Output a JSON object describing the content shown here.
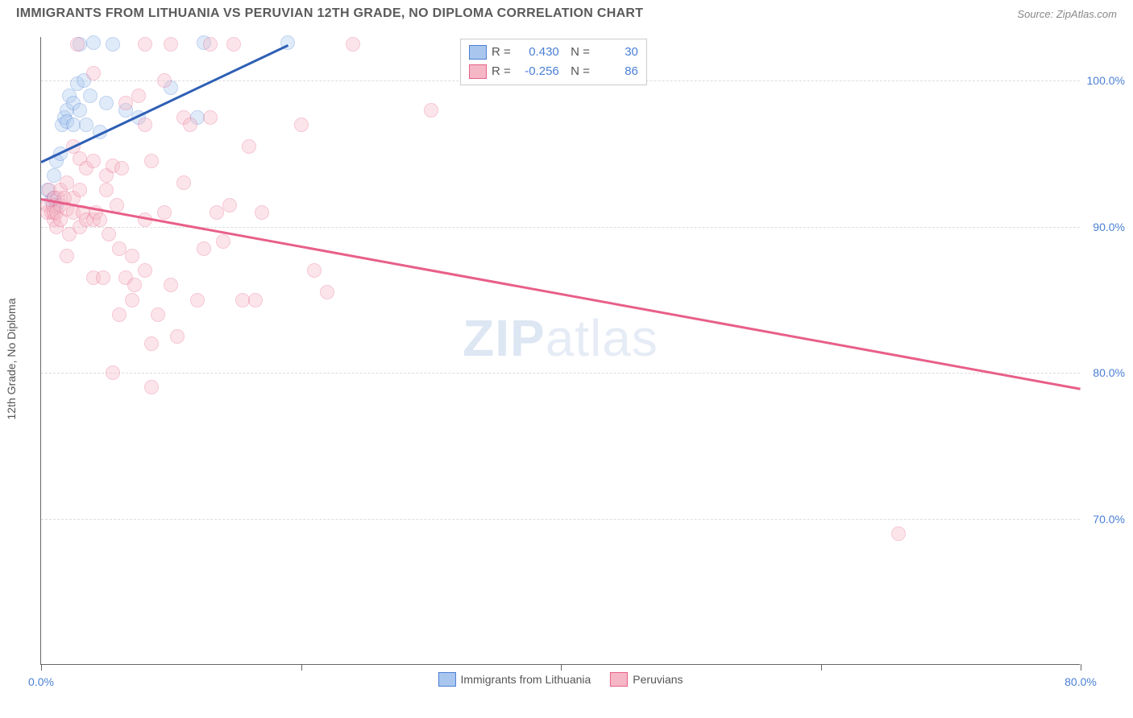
{
  "header": {
    "title": "IMMIGRANTS FROM LITHUANIA VS PERUVIAN 12TH GRADE, NO DIPLOMA CORRELATION CHART",
    "source_label": "Source:",
    "source_name": "ZipAtlas.com"
  },
  "chart": {
    "ylabel": "12th Grade, No Diploma",
    "xlim": [
      0,
      80
    ],
    "ylim": [
      60,
      103
    ],
    "yticks": [
      70,
      80,
      90,
      100
    ],
    "ytick_labels": [
      "70.0%",
      "80.0%",
      "90.0%",
      "100.0%"
    ],
    "xticks": [
      0,
      20,
      40,
      60,
      80
    ],
    "xtick_labels": [
      "0.0%",
      "",
      "",
      "",
      "80.0%"
    ],
    "background_color": "#ffffff",
    "grid_color": "#dddddd",
    "axis_color": "#666666",
    "tick_label_color": "#4a7fd4",
    "marker_radius": 9,
    "marker_opacity": 0.35,
    "watermark": {
      "text_bold": "ZIP",
      "text_light": "atlas",
      "color": "#e2e9f4"
    },
    "series": [
      {
        "name": "Immigrants from Lithuania",
        "color_fill": "#a9c7ee",
        "color_stroke": "#4a7fd4",
        "trend_color": "#2e5fb5",
        "R": "0.430",
        "N": "30",
        "trend": {
          "x1": 0,
          "y1": 94.5,
          "x2": 19,
          "y2": 102.5
        },
        "points": [
          [
            0.5,
            92.5
          ],
          [
            0.8,
            91.8
          ],
          [
            1,
            92
          ],
          [
            1,
            93.5
          ],
          [
            1.2,
            94.5
          ],
          [
            1.2,
            91.5
          ],
          [
            1.5,
            95
          ],
          [
            1.6,
            97
          ],
          [
            1.8,
            97.5
          ],
          [
            2,
            98
          ],
          [
            2,
            97.2
          ],
          [
            2.2,
            99
          ],
          [
            2.5,
            97
          ],
          [
            2.5,
            98.5
          ],
          [
            2.8,
            99.8
          ],
          [
            3,
            98
          ],
          [
            3,
            102.5
          ],
          [
            3.3,
            100
          ],
          [
            3.5,
            97
          ],
          [
            3.8,
            99
          ],
          [
            4,
            102.6
          ],
          [
            4.5,
            96.5
          ],
          [
            5,
            98.5
          ],
          [
            5.5,
            102.5
          ],
          [
            6.5,
            98
          ],
          [
            7.5,
            97.5
          ],
          [
            10,
            99.5
          ],
          [
            12,
            97.5
          ],
          [
            12.5,
            102.6
          ],
          [
            19,
            102.6
          ]
        ]
      },
      {
        "name": "Peruvians",
        "color_fill": "#f5b7c5",
        "color_stroke": "#e85f89",
        "trend_color": "#e85f89",
        "R": "-0.256",
        "N": "86",
        "trend": {
          "x1": 0,
          "y1": 92,
          "x2": 80,
          "y2": 79
        },
        "points": [
          [
            0.5,
            91.5
          ],
          [
            0.5,
            91
          ],
          [
            0.6,
            92.5
          ],
          [
            0.8,
            91
          ],
          [
            0.9,
            91.5
          ],
          [
            1,
            92
          ],
          [
            1,
            90.5
          ],
          [
            1,
            91
          ],
          [
            1.2,
            91
          ],
          [
            1.2,
            90
          ],
          [
            1.3,
            92
          ],
          [
            1.5,
            92.5
          ],
          [
            1.5,
            91.5
          ],
          [
            1.5,
            90.5
          ],
          [
            1.8,
            92
          ],
          [
            2,
            91.2
          ],
          [
            2,
            93
          ],
          [
            2,
            88
          ],
          [
            2.2,
            89.5
          ],
          [
            2.5,
            92
          ],
          [
            2.5,
            91
          ],
          [
            2.5,
            95.5
          ],
          [
            2.8,
            102.5
          ],
          [
            3,
            90
          ],
          [
            3,
            92.5
          ],
          [
            3,
            94.7
          ],
          [
            3.2,
            91
          ],
          [
            3.5,
            90.5
          ],
          [
            3.5,
            94
          ],
          [
            4,
            86.5
          ],
          [
            4,
            90.5
          ],
          [
            4,
            94.5
          ],
          [
            4,
            100.5
          ],
          [
            4.2,
            91
          ],
          [
            4.5,
            90.5
          ],
          [
            4.8,
            86.5
          ],
          [
            5,
            92.5
          ],
          [
            5,
            93.5
          ],
          [
            5.2,
            89.5
          ],
          [
            5.5,
            80
          ],
          [
            5.5,
            94.2
          ],
          [
            5.8,
            91.5
          ],
          [
            6,
            84
          ],
          [
            6,
            88.5
          ],
          [
            6.2,
            94
          ],
          [
            6.5,
            86.5
          ],
          [
            6.5,
            98.5
          ],
          [
            7,
            85
          ],
          [
            7,
            88
          ],
          [
            7.2,
            86
          ],
          [
            7.5,
            99
          ],
          [
            8,
            87
          ],
          [
            8,
            90.5
          ],
          [
            8,
            97
          ],
          [
            8,
            102.5
          ],
          [
            8.5,
            79
          ],
          [
            8.5,
            82
          ],
          [
            8.5,
            94.5
          ],
          [
            9,
            84
          ],
          [
            9.5,
            91
          ],
          [
            9.5,
            100
          ],
          [
            10,
            86
          ],
          [
            10,
            102.5
          ],
          [
            10.5,
            82.5
          ],
          [
            11,
            93
          ],
          [
            11,
            97.5
          ],
          [
            11.5,
            97
          ],
          [
            12,
            85
          ],
          [
            12.5,
            88.5
          ],
          [
            13,
            97.5
          ],
          [
            13,
            102.5
          ],
          [
            13.5,
            91
          ],
          [
            14,
            89
          ],
          [
            14.5,
            91.5
          ],
          [
            14.8,
            102.5
          ],
          [
            15.5,
            85
          ],
          [
            16,
            95.5
          ],
          [
            16.5,
            85
          ],
          [
            17,
            91
          ],
          [
            20,
            97
          ],
          [
            21,
            87
          ],
          [
            22,
            85.5
          ],
          [
            24,
            102.5
          ],
          [
            30,
            98
          ],
          [
            66,
            69
          ]
        ]
      }
    ],
    "legend_bottom": [
      {
        "label": "Immigrants from Lithuania",
        "fill": "#a9c7ee",
        "stroke": "#4a7fd4"
      },
      {
        "label": "Peruvians",
        "fill": "#f5b7c5",
        "stroke": "#e85f89"
      }
    ]
  }
}
